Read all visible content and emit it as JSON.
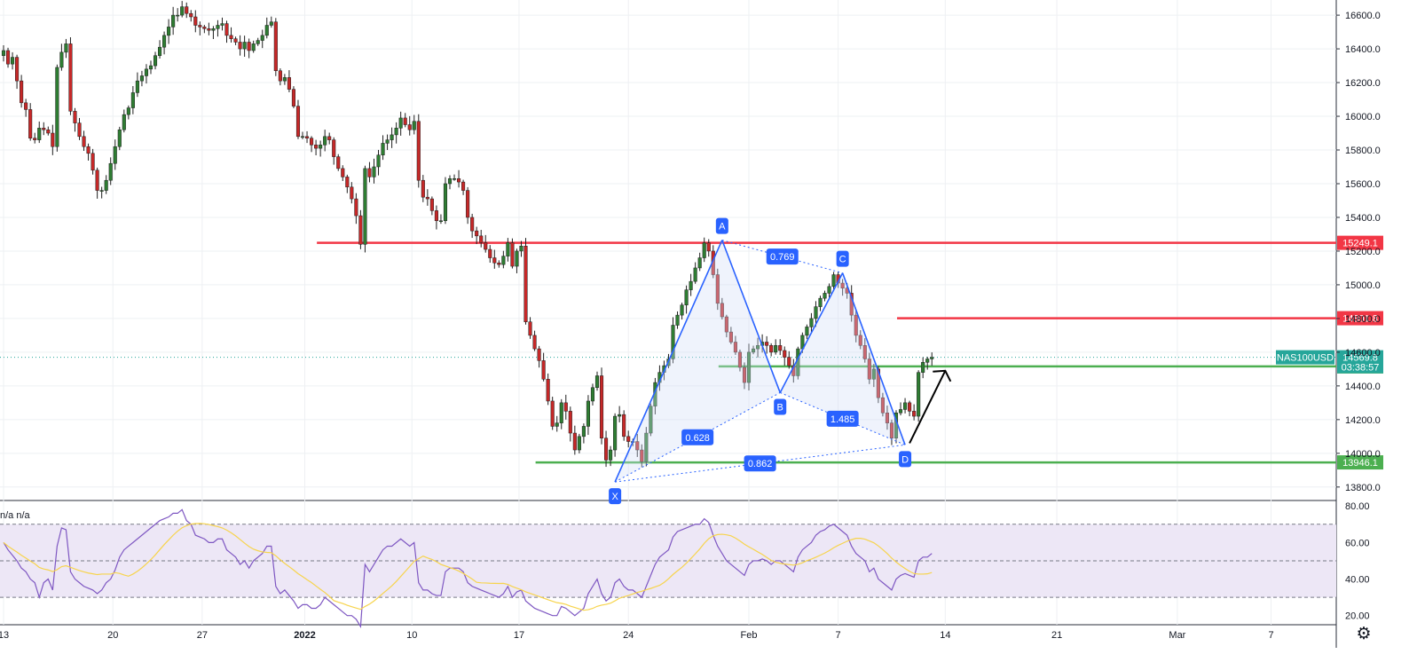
{
  "symbol": "NAS100USD",
  "countdown": "03:38:57",
  "indicator_label": "n/a n/a",
  "settings_icon": "gear-icon",
  "colors": {
    "up": "#26a69a",
    "candle_up": "#2e7d32",
    "candle_down": "#c62828",
    "resistance": "#f23645",
    "support": "#4caf50",
    "pattern": "#2962ff",
    "pattern_fill": "#d1dcf7",
    "rsi_line": "#7e57c2",
    "rsi_ma": "#f7d44c",
    "rsi_band": "#ede7f6"
  },
  "chart_data": [
    {
      "type": "candlestick",
      "title": "",
      "price_axis_ticks": [
        "16600.0",
        "16400.0",
        "16200.0",
        "16000.0",
        "15800.0",
        "15600.0",
        "15400.0",
        "15200.0",
        "15000.0",
        "14800.0",
        "14600.0",
        "14400.0",
        "14200.0",
        "14000.0",
        "13800.0"
      ],
      "ylim": [
        13720,
        16690
      ],
      "time_axis_ticks": [
        "13",
        "20",
        "27",
        "2022",
        "10",
        "17",
        "24",
        "Feb",
        "7",
        "14",
        "21",
        "Mar",
        "7"
      ],
      "close_series": [
        16390,
        16310,
        16350,
        16210,
        16080,
        16040,
        15870,
        15860,
        15930,
        15920,
        15900,
        15820,
        16290,
        16380,
        16430,
        16030,
        15960,
        15880,
        15820,
        15780,
        15680,
        15560,
        15560,
        15620,
        15720,
        15820,
        15920,
        16010,
        16050,
        16140,
        16210,
        16240,
        16280,
        16300,
        16360,
        16410,
        16480,
        16530,
        16600,
        16600,
        16650,
        16610,
        16590,
        16540,
        16530,
        16520,
        16510,
        16520,
        16540,
        16550,
        16480,
        16460,
        16440,
        16400,
        16440,
        16390,
        16430,
        16450,
        16480,
        16540,
        16560,
        16270,
        16210,
        16230,
        16160,
        16060,
        15880,
        15880,
        15870,
        15830,
        15810,
        15830,
        15880,
        15860,
        15760,
        15690,
        15640,
        15580,
        15510,
        15410,
        15240,
        15690,
        15640,
        15700,
        15770,
        15840,
        15860,
        15890,
        15930,
        15990,
        15950,
        15920,
        15970,
        15620,
        15520,
        15510,
        15440,
        15380,
        15380,
        15600,
        15630,
        15630,
        15610,
        15560,
        15400,
        15320,
        15290,
        15250,
        15210,
        15160,
        15130,
        15120,
        15170,
        15250,
        15110,
        15200,
        15230,
        14780,
        14700,
        14620,
        14550,
        14440,
        14310,
        14160,
        14180,
        14300,
        14250,
        14120,
        14020,
        14100,
        14160,
        14310,
        14390,
        14460,
        14090,
        13960,
        14020,
        14220,
        14230,
        14100,
        14070,
        14070,
        14020,
        13950,
        14120,
        14280,
        14420,
        14480,
        14520,
        14560,
        14760,
        14820,
        14880,
        14970,
        15020,
        15100,
        15160,
        15249,
        15200,
        15060,
        14890,
        14810,
        14720,
        14660,
        14600,
        14510,
        14420,
        14600,
        14620,
        14640,
        14660,
        14640,
        14600,
        14640,
        14610,
        14570,
        14520,
        14460,
        14620,
        14700,
        14750,
        14800,
        14870,
        14920,
        14950,
        14990,
        15060,
        15010,
        14980,
        14950,
        14820,
        14700,
        14640,
        14560,
        14440,
        14500,
        14330,
        14240,
        14180,
        14090,
        14240,
        14260,
        14300,
        14250,
        14220,
        14480,
        14540,
        14560,
        14569.8
      ],
      "horizontal_levels": [
        {
          "value": 15249.1,
          "label": "15249.1",
          "kind": "resistance"
        },
        {
          "value": 14801.8,
          "label": "14801.8",
          "kind": "resistance"
        },
        {
          "value": 14515.6,
          "label": "14515.6",
          "kind": "support"
        },
        {
          "value": 13946.1,
          "label": "13946.1",
          "kind": "support"
        }
      ],
      "last_price": {
        "value": 14569.8,
        "label": "14569.8"
      },
      "harmonic_pattern": {
        "points": [
          {
            "name": "X",
            "index": 137,
            "price": 13830
          },
          {
            "name": "A",
            "index": 161,
            "price": 15265
          },
          {
            "name": "B",
            "index": 174,
            "price": 14360
          },
          {
            "name": "C",
            "index": 188,
            "price": 15070
          },
          {
            "name": "D",
            "index": 202,
            "price": 14050
          }
        ],
        "ratios": [
          "0.769",
          "0.628",
          "1.485",
          "0.862"
        ]
      },
      "projection_arrow": {
        "from": {
          "index": 203,
          "price": 14060
        },
        "to": {
          "index": 211,
          "price": 14490
        }
      }
    },
    {
      "type": "line",
      "title": "",
      "ytick_labels": [
        "80.00",
        "60.00",
        "40.00",
        "20.00"
      ],
      "ylim": [
        15,
        83
      ],
      "bands": [
        30,
        50,
        70
      ],
      "series": [
        {
          "values": [
            60,
            56,
            53,
            50,
            46,
            44,
            40,
            38,
            30,
            38,
            40,
            34,
            58,
            68,
            67,
            44,
            40,
            38,
            36,
            35,
            34,
            32,
            34,
            38,
            40,
            45,
            52,
            56,
            58,
            60,
            62,
            64,
            66,
            68,
            70,
            72,
            73,
            74,
            76,
            76,
            78,
            72,
            70,
            64,
            63,
            62,
            60,
            60,
            62,
            62,
            56,
            54,
            52,
            48,
            50,
            46,
            50,
            52,
            54,
            58,
            58,
            36,
            32,
            34,
            31,
            28,
            24,
            26,
            26,
            24,
            24,
            26,
            30,
            28,
            26,
            24,
            22,
            20,
            20,
            18,
            14,
            48,
            44,
            48,
            52,
            56,
            58,
            58,
            60,
            62,
            60,
            58,
            60,
            38,
            34,
            34,
            32,
            31,
            31,
            44,
            46,
            46,
            46,
            44,
            38,
            36,
            35,
            34,
            33,
            32,
            31,
            30,
            32,
            36,
            30,
            33,
            34,
            28,
            26,
            24,
            23,
            22,
            21,
            20,
            20,
            25,
            24,
            22,
            20,
            22,
            24,
            32,
            36,
            40,
            32,
            28,
            30,
            38,
            40,
            36,
            34,
            34,
            32,
            30,
            36,
            42,
            48,
            52,
            54,
            56,
            63,
            66,
            67,
            68,
            69,
            70,
            70,
            73,
            71,
            64,
            58,
            54,
            50,
            48,
            46,
            44,
            42,
            48,
            50,
            50,
            51,
            50,
            48,
            50,
            50,
            48,
            46,
            44,
            52,
            56,
            58,
            60,
            64,
            66,
            67,
            69,
            70,
            68,
            66,
            64,
            58,
            54,
            52,
            50,
            44,
            46,
            40,
            38,
            36,
            34,
            40,
            42,
            43,
            42,
            41,
            50,
            52,
            52,
            54
          ]
        }
      ]
    }
  ]
}
